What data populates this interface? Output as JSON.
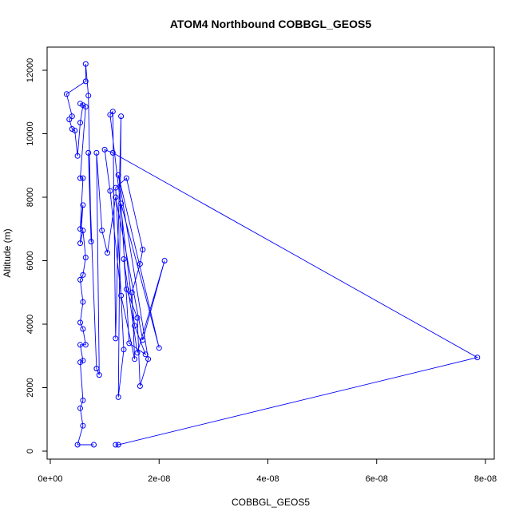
{
  "chart_data": {
    "type": "scatter",
    "title": "ATOM4 Northbound COBBGL_GEOS5",
    "xlabel": "COBBGL_GEOS5",
    "ylabel": "Altitude (m)",
    "xlim": [
      0,
      8e-08
    ],
    "ylim": [
      0,
      12000
    ],
    "x_ticks": [
      0,
      2e-08,
      4e-08,
      6e-08,
      8e-08
    ],
    "x_tick_labels": [
      "0e+00",
      "2e-08",
      "4e-08",
      "6e-08",
      "8e-08"
    ],
    "y_ticks": [
      0,
      2000,
      4000,
      6000,
      8000,
      10000,
      12000
    ],
    "y_tick_labels": [
      "0",
      "2000",
      "4000",
      "6000",
      "8000",
      "10000",
      "12000"
    ],
    "grid": false,
    "line_color": "#0000ff",
    "series": [
      {
        "style": "points-and-lines",
        "points": [
          [
            1.2e-08,
            200
          ],
          [
            1.25e-08,
            200
          ],
          [
            7.85e-08,
            2950
          ],
          [
            1.15e-08,
            9400
          ],
          [
            1e-08,
            9500
          ],
          [
            1.1e-08,
            8200
          ],
          [
            1.3e-08,
            4900
          ],
          [
            1.55e-08,
            2900
          ],
          [
            1.5e-08,
            5000
          ],
          [
            1.65e-08,
            5900
          ],
          [
            1.7e-08,
            6350
          ],
          [
            1.4e-08,
            8600
          ],
          [
            1.2e-08,
            8300
          ],
          [
            1.35e-08,
            3200
          ],
          [
            1.25e-08,
            1700
          ],
          [
            1.3e-08,
            10550
          ],
          [
            1.2e-08,
            3550
          ],
          [
            1.15e-08,
            10700
          ],
          [
            1.1e-08,
            10600
          ],
          [
            1.55e-08,
            3950
          ],
          [
            1.75e-08,
            3050
          ],
          [
            1.45e-08,
            3400
          ],
          [
            1.3e-08,
            7800
          ],
          [
            2e-08,
            3250
          ],
          [
            1.25e-08,
            8700
          ],
          [
            1.8e-08,
            2900
          ],
          [
            1.65e-08,
            2050
          ],
          [
            1.6e-08,
            4200
          ],
          [
            1.4e-08,
            5100
          ],
          [
            1.35e-08,
            6050
          ],
          [
            1.6e-08,
            3100
          ],
          [
            2.1e-08,
            6000
          ],
          [
            1.7e-08,
            3500
          ],
          [
            1.2e-08,
            8000
          ],
          [
            1.05e-08,
            6250
          ],
          [
            9.5e-09,
            6950
          ],
          [
            8.5e-09,
            9400
          ],
          [
            9e-09,
            2400
          ],
          [
            8.5e-09,
            2600
          ],
          [
            7e-09,
            9400
          ],
          [
            7.5e-09,
            6600
          ],
          [
            7e-09,
            11200
          ],
          [
            6.5e-09,
            12200
          ],
          [
            6.5e-09,
            11650
          ],
          [
            3e-09,
            11250
          ],
          [
            4e-09,
            10550
          ],
          [
            3.5e-09,
            10450
          ],
          [
            4e-09,
            10150
          ],
          [
            4.5e-09,
            10100
          ],
          [
            5e-09,
            9300
          ],
          [
            5.5e-09,
            10350
          ],
          [
            6e-09,
            10900
          ],
          [
            5.5e-09,
            10950
          ],
          [
            6.5e-09,
            10850
          ],
          [
            5.5e-09,
            8600
          ],
          [
            6e-09,
            8600
          ],
          [
            5.5e-09,
            7000
          ],
          [
            6e-09,
            7750
          ],
          [
            5.5e-09,
            6550
          ],
          [
            6e-09,
            6950
          ],
          [
            6.5e-09,
            6100
          ],
          [
            6e-09,
            5550
          ],
          [
            5.5e-09,
            5400
          ],
          [
            6e-09,
            4700
          ],
          [
            5.5e-09,
            4050
          ],
          [
            6e-09,
            3850
          ],
          [
            6.5e-09,
            3350
          ],
          [
            5.5e-09,
            3350
          ],
          [
            6e-09,
            2850
          ],
          [
            5.5e-09,
            2800
          ],
          [
            6e-09,
            1600
          ],
          [
            5.5e-09,
            1350
          ],
          [
            6e-09,
            800
          ],
          [
            5e-09,
            200
          ],
          [
            8e-09,
            200
          ]
        ]
      }
    ]
  }
}
